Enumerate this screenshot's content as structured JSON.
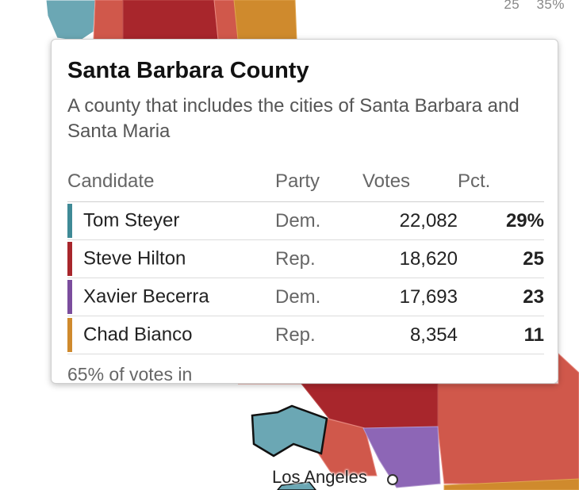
{
  "legend": {
    "ticks": [
      "25",
      "35%"
    ]
  },
  "map": {
    "colors": {
      "steyer_light": "#6ba7b4",
      "steyer_dark": "#3f8a96",
      "hilton_dark": "#a8262c",
      "hilton_light": "#d0584b",
      "becerra": "#8d66b6",
      "bianco": "#cf8a2d"
    },
    "city_label": "Los Angeles"
  },
  "tooltip": {
    "title": "Santa Barbara County",
    "description": "A county that includes the cities of Santa Barbara and Santa Maria",
    "headers": {
      "candidate": "Candidate",
      "party": "Party",
      "votes": "Votes",
      "pct": "Pct."
    },
    "rows": [
      {
        "name": "Tom Steyer",
        "party": "Dem.",
        "votes": "22,082",
        "pct": "29%",
        "color": "#3f8a96"
      },
      {
        "name": "Steve Hilton",
        "party": "Rep.",
        "votes": "18,620",
        "pct": "25",
        "color": "#a8262c"
      },
      {
        "name": "Xavier Becerra",
        "party": "Dem.",
        "votes": "17,693",
        "pct": "23",
        "color": "#7b4d9d"
      },
      {
        "name": "Chad Bianco",
        "party": "Rep.",
        "votes": "8,354",
        "pct": "11",
        "color": "#cf8a2d"
      }
    ],
    "footer": "65% of votes in"
  }
}
